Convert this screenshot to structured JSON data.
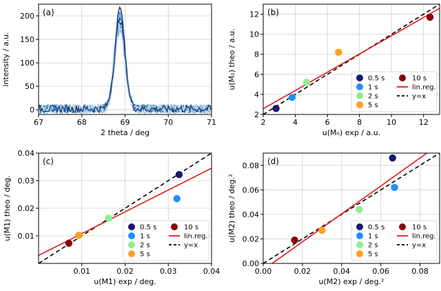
{
  "chart_data": [
    {
      "id": "a",
      "type": "line",
      "panel_label": "(a)",
      "xlabel": "2 theta / deg",
      "ylabel": "intensity / a.u.",
      "xlim": [
        67,
        71
      ],
      "ylim": [
        -10,
        225
      ],
      "xticks": [
        67,
        68,
        69,
        70,
        71
      ],
      "yticks": [
        0,
        50,
        100,
        150,
        200
      ],
      "grid": true,
      "peak": {
        "center": 68.88,
        "width": 0.12
      },
      "series": [
        {
          "color": "#08306b",
          "peak_height": 210,
          "noise_amp": 7
        },
        {
          "color": "#08519c",
          "peak_height": 195,
          "noise_amp": 8
        },
        {
          "color": "#2171b5",
          "peak_height": 180,
          "noise_amp": 8
        },
        {
          "color": "#4292c6",
          "peak_height": 200,
          "noise_amp": 9
        },
        {
          "color": "#6baed6",
          "peak_height": 170,
          "noise_amp": 9
        },
        {
          "color": "#9ecae1",
          "peak_height": 165,
          "noise_amp": 10
        },
        {
          "color": "#c6dbef",
          "peak_height": 185,
          "noise_amp": 10
        },
        {
          "color": "#1f3f7a",
          "peak_height": 190,
          "noise_amp": 8
        }
      ]
    },
    {
      "id": "b",
      "type": "scatter",
      "panel_label": "(b)",
      "xlabel": "u(M₀) exp / a.u.",
      "ylabel": "u(M₀) theo / a.u.",
      "xlim": [
        2,
        13
      ],
      "ylim": [
        2,
        13
      ],
      "xticks": [
        2,
        4,
        6,
        8,
        10,
        12
      ],
      "yticks": [
        2,
        4,
        6,
        8,
        10,
        12
      ],
      "grid": true,
      "points": [
        {
          "label": "0.5 s",
          "x": 2.8,
          "y": 2.6,
          "color": "#191970"
        },
        {
          "label": "1 s",
          "x": 3.8,
          "y": 3.7,
          "color": "#1e90ff"
        },
        {
          "label": "2 s",
          "x": 4.7,
          "y": 5.2,
          "color": "#90ee90"
        },
        {
          "label": "5 s",
          "x": 6.7,
          "y": 8.2,
          "color": "#ff9f1c"
        },
        {
          "label": "10 s",
          "x": 12.4,
          "y": 11.7,
          "color": "#8b0000"
        }
      ],
      "linreg": {
        "slope": 0.91,
        "intercept": 0.75,
        "color": "#e41a1c"
      },
      "identity_line": true,
      "legend_position": "lower-right",
      "legend_entries": [
        "0.5 s",
        "1 s",
        "2 s",
        "5 s",
        "10 s",
        "lin.reg.",
        "y=x"
      ]
    },
    {
      "id": "c",
      "type": "scatter",
      "panel_label": "(c)",
      "xlabel": "u(M1) exp / deg.",
      "ylabel": "u(M1) theo / deg.",
      "xlim": [
        0,
        0.04
      ],
      "ylim": [
        0,
        0.04
      ],
      "xticks": [
        0.01,
        0.02,
        0.03,
        0.04
      ],
      "yticks": [
        0.01,
        0.02,
        0.03,
        0.04
      ],
      "grid": true,
      "points": [
        {
          "label": "0.5 s",
          "x": 0.0325,
          "y": 0.0322,
          "color": "#191970"
        },
        {
          "label": "1 s",
          "x": 0.032,
          "y": 0.0235,
          "color": "#1e90ff"
        },
        {
          "label": "2 s",
          "x": 0.0162,
          "y": 0.0164,
          "color": "#90ee90"
        },
        {
          "label": "5 s",
          "x": 0.0093,
          "y": 0.0102,
          "color": "#ff9f1c"
        },
        {
          "label": "10 s",
          "x": 0.007,
          "y": 0.0073,
          "color": "#8b0000"
        }
      ],
      "linreg": {
        "slope": 0.79,
        "intercept": 0.0029,
        "color": "#e41a1c"
      },
      "identity_line": true,
      "legend_position": "lower-right",
      "legend_entries": [
        "0.5 s",
        "1 s",
        "2 s",
        "5 s",
        "10 s",
        "lin.reg.",
        "y=x"
      ]
    },
    {
      "id": "d",
      "type": "scatter",
      "panel_label": "(d)",
      "xlabel": "u(M2) exp / deg.²",
      "ylabel": "u(M2) theo / deg.²",
      "xlim": [
        0,
        0.09
      ],
      "ylim": [
        0,
        0.09
      ],
      "xticks": [
        0.0,
        0.02,
        0.04,
        0.06,
        0.08
      ],
      "yticks": [
        0.0,
        0.02,
        0.04,
        0.06,
        0.08
      ],
      "grid": true,
      "points": [
        {
          "label": "0.5 s",
          "x": 0.066,
          "y": 0.086,
          "color": "#191970"
        },
        {
          "label": "1 s",
          "x": 0.067,
          "y": 0.062,
          "color": "#1e90ff"
        },
        {
          "label": "2 s",
          "x": 0.049,
          "y": 0.044,
          "color": "#90ee90"
        },
        {
          "label": "5 s",
          "x": 0.03,
          "y": 0.027,
          "color": "#ff9f1c"
        },
        {
          "label": "10 s",
          "x": 0.016,
          "y": 0.019,
          "color": "#8b0000"
        }
      ],
      "linreg": {
        "slope": 1.14,
        "intercept": -0.0052,
        "color": "#e41a1c"
      },
      "identity_line": true,
      "legend_position": "lower-right",
      "legend_entries": [
        "0.5 s",
        "1 s",
        "2 s",
        "5 s",
        "10 s",
        "lin.reg.",
        "y=x"
      ]
    }
  ]
}
